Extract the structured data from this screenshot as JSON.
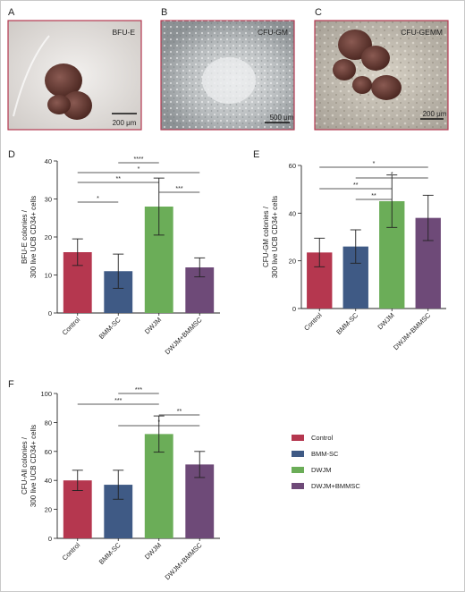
{
  "panel_letters": {
    "A": "A",
    "B": "B",
    "C": "C",
    "D": "D",
    "E": "E",
    "F": "F"
  },
  "micrographs": [
    {
      "letter": "A",
      "label": "BFU-E",
      "scale": "200 μm"
    },
    {
      "letter": "B",
      "label": "CFU-GM",
      "scale": "500 μm"
    },
    {
      "letter": "C",
      "label": "CFU-GEMM",
      "scale": "200 μm"
    }
  ],
  "legend": [
    {
      "name": "Control",
      "color": "#b5374f"
    },
    {
      "name": "BMM-SC",
      "color": "#3f5a85"
    },
    {
      "name": "DWJM",
      "color": "#6bad58"
    },
    {
      "name": "DWJM+BMMSC",
      "color": "#6e4a78"
    }
  ],
  "chart_data": [
    {
      "type": "bar",
      "panel": "D",
      "categories": [
        "Control",
        "BMM-SC",
        "DWJM",
        "DWJM+BMMSC"
      ],
      "values": [
        16,
        11,
        28,
        12
      ],
      "errors": [
        3.5,
        4.5,
        7.5,
        2.5
      ],
      "colors": [
        "#b5374f",
        "#3f5a85",
        "#6bad58",
        "#6e4a78"
      ],
      "ylabel_lines": [
        "BFU-E colonies /",
        "300 live UCB CD34+ cells"
      ],
      "ylim": [
        0,
        40
      ],
      "yticks": [
        0,
        10,
        20,
        30,
        40
      ],
      "significance": [
        {
          "from": 1,
          "to": 2,
          "label": "****"
        },
        {
          "from": 0,
          "to": 3,
          "label": "*"
        },
        {
          "from": 0,
          "to": 2,
          "label": "**"
        },
        {
          "from": 2,
          "to": 3,
          "label": "***"
        },
        {
          "from": 0,
          "to": 1,
          "label": "*"
        }
      ]
    },
    {
      "type": "bar",
      "panel": "E",
      "categories": [
        "Control",
        "BMM-SC",
        "DWJM",
        "DWJM+BMMSC"
      ],
      "values": [
        23.5,
        26,
        45,
        38
      ],
      "errors": [
        6,
        7,
        11,
        9.5
      ],
      "colors": [
        "#b5374f",
        "#3f5a85",
        "#6bad58",
        "#6e4a78"
      ],
      "ylabel_lines": [
        "CFU-GM colonies /",
        "300 live UCB CD34+ cells"
      ],
      "ylim": [
        0,
        60
      ],
      "yticks": [
        0,
        20,
        40,
        60
      ],
      "significance": [
        {
          "from": 0,
          "to": 3,
          "label": "*"
        },
        {
          "from": 1,
          "to": 3,
          "label": "*"
        },
        {
          "from": 0,
          "to": 2,
          "label": "**"
        },
        {
          "from": 1,
          "to": 2,
          "label": "**"
        }
      ]
    },
    {
      "type": "bar",
      "panel": "F",
      "categories": [
        "Control",
        "BMM-SC",
        "DWJM",
        "DWJM+BMMSC"
      ],
      "values": [
        40,
        37,
        72,
        51
      ],
      "errors": [
        7,
        10,
        12.5,
        9
      ],
      "colors": [
        "#b5374f",
        "#3f5a85",
        "#6bad58",
        "#6e4a78"
      ],
      "ylabel_lines": [
        "CFU-All colonies /",
        "300 live UCB CD34+ cells"
      ],
      "ylim": [
        0,
        100
      ],
      "yticks": [
        0,
        20,
        40,
        60,
        80,
        100
      ],
      "significance": [
        {
          "from": 1,
          "to": 2,
          "label": "***"
        },
        {
          "from": 0,
          "to": 2,
          "label": "***"
        },
        {
          "from": 2,
          "to": 3,
          "label": "**"
        },
        {
          "from": 1,
          "to": 3,
          "label": "*"
        }
      ]
    }
  ]
}
